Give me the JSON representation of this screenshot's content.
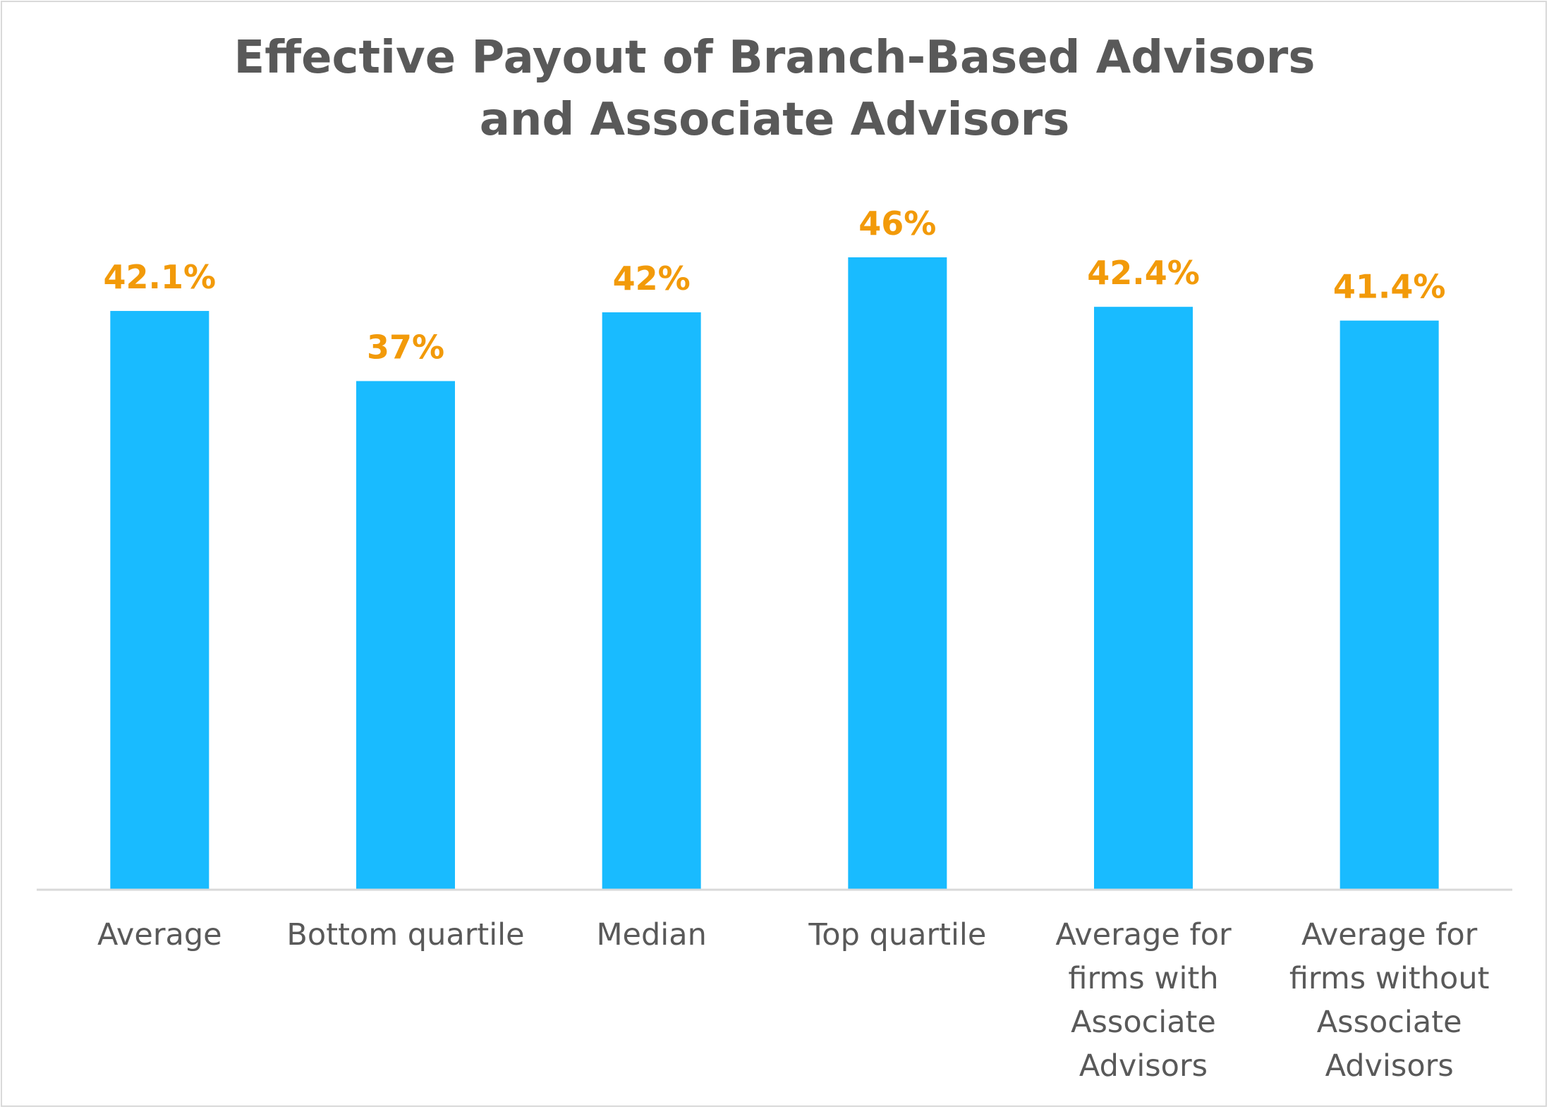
{
  "chart_data": {
    "type": "bar",
    "title": "Effective Payout of Branch-Based Advisors and Associate Advisors",
    "title_lines": [
      "Effective Payout of Branch-Based Advisors",
      "and Associate Advisors"
    ],
    "categories": [
      "Average",
      "Bottom quartile",
      "Median",
      "Top quartile",
      "Average for firms with Associate Advisors",
      "Average for firms without Associate Advisors"
    ],
    "category_lines": [
      [
        "Average"
      ],
      [
        "Bottom quartile"
      ],
      [
        "Median"
      ],
      [
        "Top quartile"
      ],
      [
        "Average for",
        "firms with",
        "Associate",
        "Advisors"
      ],
      [
        "Average for",
        "firms without",
        "Associate",
        "Advisors"
      ]
    ],
    "values": [
      42.1,
      37,
      42,
      46,
      42.4,
      41.4
    ],
    "data_labels": [
      "42.1%",
      "37%",
      "42%",
      "46%",
      "42.4%",
      "41.4%"
    ],
    "ylim": [
      0,
      46
    ],
    "grid": false,
    "legend": "none",
    "colors": {
      "bar": "#19bbff",
      "data_label": "#f29a09",
      "text": "#595959",
      "axis": "#d9d9d9"
    }
  }
}
